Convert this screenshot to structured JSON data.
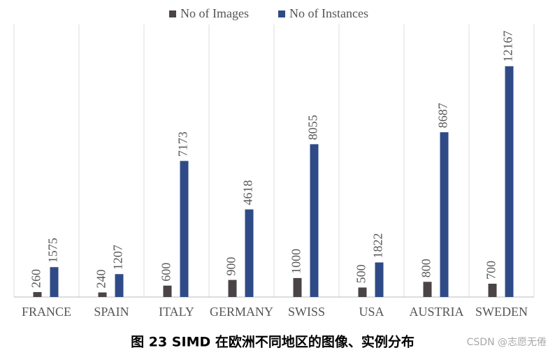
{
  "chart_data": {
    "type": "bar",
    "categories": [
      "FRANCE",
      "SPAIN",
      "ITALY",
      "GERMANY",
      "SWISS",
      "USA",
      "AUSTRIA",
      "SWEDEN"
    ],
    "series": [
      {
        "name": "No of Images",
        "color": "#4a4347",
        "values": [
          260,
          240,
          600,
          900,
          1000,
          500,
          800,
          700
        ]
      },
      {
        "name": "No of Instances",
        "color": "#2f4b87",
        "values": [
          1575,
          1207,
          7173,
          4618,
          8055,
          1822,
          8687,
          12167
        ]
      }
    ],
    "ylim": [
      0,
      14000
    ],
    "grid": true,
    "legend": "top"
  },
  "caption": "图 23 SIMD 在欧洲不同地区的图像、实例分布",
  "watermark": "CSDN @志愿无倦"
}
